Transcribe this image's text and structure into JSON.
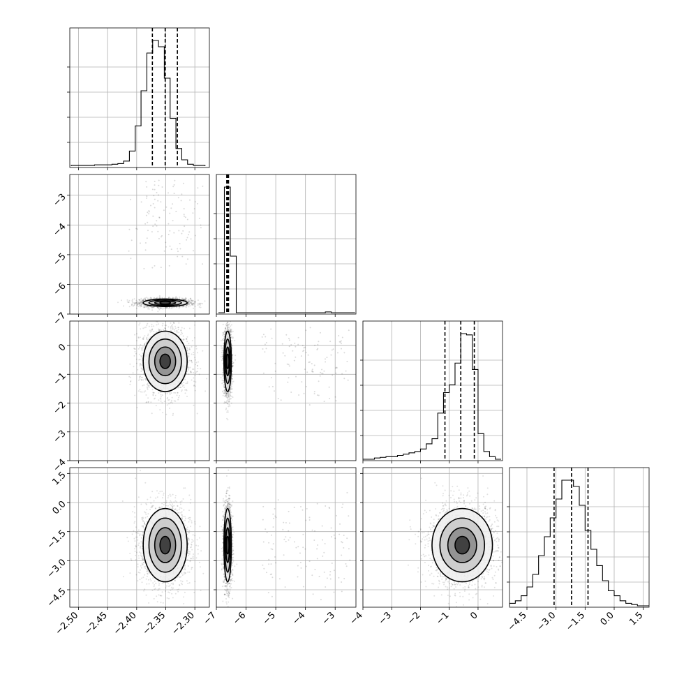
{
  "chart_data": {
    "type": "corner",
    "parameters": [
      {
        "index": 0,
        "range": [
          -2.515,
          -2.275
        ],
        "ticks": [
          -2.5,
          -2.45,
          -2.4,
          -2.35,
          -2.3
        ],
        "tick_labels": [
          "−2.50",
          "−2.45",
          "−2.40",
          "−2.35",
          "−2.30"
        ],
        "quantiles": [
          -2.373,
          -2.351,
          -2.33
        ],
        "mean": -2.351,
        "sd": 0.018
      },
      {
        "index": 1,
        "range": [
          -7.0,
          -2.3
        ],
        "ticks": [
          -7,
          -6,
          -5,
          -4,
          -3
        ],
        "tick_labels": [
          "−7",
          "−6",
          "−5",
          "−4",
          "−3"
        ],
        "quantiles": [
          -6.65,
          -6.62,
          -6.59
        ],
        "mean": -6.62,
        "sd": 0.06
      },
      {
        "index": 2,
        "range": [
          -4.0,
          0.85
        ],
        "ticks": [
          -4,
          -3,
          -2,
          -1,
          0
        ],
        "tick_labels": [
          "−4",
          "−3",
          "−2",
          "−1",
          "0"
        ],
        "quantiles": [
          -1.15,
          -0.6,
          -0.13
        ],
        "mean": -0.55,
        "sd": 0.5
      },
      {
        "index": 3,
        "range": [
          -5.4,
          1.8
        ],
        "ticks": [
          -4.5,
          -3.0,
          -1.5,
          0.0,
          1.5
        ],
        "tick_labels": [
          "−4.5",
          "−3.0",
          "−1.5",
          "0.0",
          "1.5"
        ],
        "quantiles": [
          -3.1,
          -2.2,
          -1.35
        ],
        "mean": -2.2,
        "sd": 0.9
      }
    ],
    "histograms": [
      {
        "param": 0,
        "bins": [
          -2.5125,
          -2.5025,
          -2.4925,
          -2.4825,
          -2.4725,
          -2.4625,
          -2.4525,
          -2.4425,
          -2.4325,
          -2.4225,
          -2.4125,
          -2.4025,
          -2.3925,
          -2.3825,
          -2.3725,
          -2.3625,
          -2.3525,
          -2.3425,
          -2.3325,
          -2.3225,
          -2.3125,
          -2.3025,
          -2.2925,
          -2.2825
        ],
        "counts": [
          0.005,
          0.005,
          0.005,
          0.005,
          0.01,
          0.01,
          0.01,
          0.015,
          0.02,
          0.04,
          0.12,
          0.32,
          0.6,
          0.9,
          1.0,
          0.95,
          0.7,
          0.38,
          0.14,
          0.05,
          0.015,
          0.005,
          0.005
        ]
      },
      {
        "param": 1,
        "bins": [
          -6.93,
          -6.73,
          -6.53,
          -6.33,
          -6.13,
          -5.93,
          -5.73,
          -5.53,
          -5.33,
          -5.13,
          -4.93,
          -4.73,
          -4.53,
          -4.33,
          -4.13,
          -3.93,
          -3.73,
          -3.53,
          -3.33,
          -3.13,
          -2.93,
          -2.73,
          -2.53,
          -2.33
        ],
        "counts": [
          0.0,
          1.0,
          0.45,
          0.0,
          0.0,
          0.0,
          0.0,
          0.0,
          0.0,
          0.0,
          0.0,
          0.0,
          0.0,
          0.0,
          0.0,
          0.0,
          0.0,
          0.0,
          0.006,
          0.0,
          0.0,
          0.0,
          0.0
        ]
      },
      {
        "param": 2,
        "bins": [
          -4.0,
          -3.8,
          -3.6,
          -3.4,
          -3.2,
          -3.0,
          -2.8,
          -2.6,
          -2.4,
          -2.2,
          -2.0,
          -1.8,
          -1.6,
          -1.4,
          -1.2,
          -1.0,
          -0.8,
          -0.6,
          -0.4,
          -0.2,
          0.0,
          0.2,
          0.4,
          0.6,
          0.8
        ],
        "counts": [
          0.0,
          0.0,
          0.01,
          0.015,
          0.02,
          0.02,
          0.03,
          0.04,
          0.05,
          0.06,
          0.08,
          0.12,
          0.16,
          0.36,
          0.52,
          0.58,
          0.75,
          0.98,
          0.97,
          0.7,
          0.2,
          0.06,
          0.02,
          0.0
        ]
      },
      {
        "param": 3,
        "bins": [
          -5.4,
          -5.1,
          -4.8,
          -4.5,
          -4.2,
          -3.9,
          -3.6,
          -3.3,
          -3.0,
          -2.7,
          -2.4,
          -2.1,
          -1.8,
          -1.5,
          -1.2,
          -0.9,
          -0.6,
          -0.3,
          0.0,
          0.3,
          0.6,
          0.9,
          1.2,
          1.5,
          1.8
        ],
        "counts": [
          0.02,
          0.04,
          0.08,
          0.15,
          0.25,
          0.4,
          0.55,
          0.7,
          0.85,
          1.0,
          1.0,
          0.95,
          0.8,
          0.6,
          0.45,
          0.32,
          0.2,
          0.12,
          0.08,
          0.04,
          0.02,
          0.01,
          0.0,
          0.0
        ]
      }
    ],
    "grid": true,
    "colors": {
      "points": "#000000",
      "lines": "#000000",
      "grid": "#b0b0b0"
    }
  }
}
